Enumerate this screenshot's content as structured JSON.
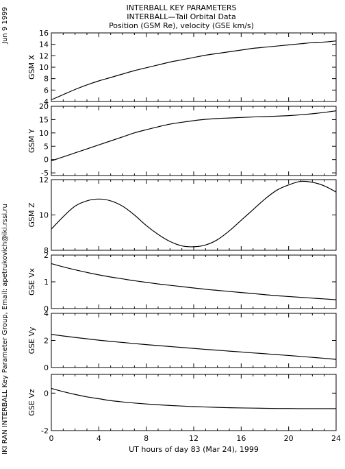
{
  "header": {
    "title_line1": "INTERBALL KEY PARAMETERS",
    "title_line2": "INTERBALL—Tail Orbital Data",
    "title_line3": "Position (GSM Re), velocity (GSE km/s)"
  },
  "left_date": "Jun  9 1999",
  "left_credit": "IKI RAN INTERBALL Key Parameter Group, Email: apetrukovich@iki.rssi.ru",
  "x_axis_label": "UT hours of day  83 (Mar 24), 1999",
  "colors": {
    "line": "#000000",
    "background": "#ffffff"
  },
  "chart_data": [
    {
      "type": "line",
      "ylabel": "GSM X",
      "ylim": [
        4,
        16
      ],
      "yticks": [
        4,
        6,
        8,
        10,
        12,
        14,
        16
      ],
      "xlim": [
        0,
        24
      ],
      "xticks": [
        0,
        4,
        8,
        12,
        16,
        20,
        24
      ],
      "x": [
        0,
        1,
        2,
        3,
        4,
        5,
        6,
        7,
        8,
        9,
        10,
        11,
        12,
        13,
        14,
        15,
        16,
        17,
        18,
        19,
        20,
        21,
        22,
        23,
        24
      ],
      "values": [
        4.3,
        5.2,
        6.1,
        6.9,
        7.6,
        8.2,
        8.8,
        9.4,
        9.9,
        10.4,
        10.9,
        11.3,
        11.7,
        12.1,
        12.4,
        12.7,
        13.0,
        13.3,
        13.5,
        13.7,
        13.9,
        14.1,
        14.3,
        14.4,
        14.6
      ]
    },
    {
      "type": "line",
      "ylabel": "GSM Y",
      "ylim": [
        -6,
        20
      ],
      "yticks": [
        -5,
        0,
        5,
        10,
        15,
        20
      ],
      "xlim": [
        0,
        24
      ],
      "xticks": [
        0,
        4,
        8,
        12,
        16,
        20,
        24
      ],
      "x": [
        0,
        1,
        2,
        3,
        4,
        5,
        6,
        7,
        8,
        9,
        10,
        11,
        12,
        13,
        14,
        15,
        16,
        17,
        18,
        19,
        20,
        21,
        22,
        23,
        24
      ],
      "values": [
        -0.5,
        1.0,
        2.5,
        4.0,
        5.5,
        7.0,
        8.5,
        10.0,
        11.2,
        12.3,
        13.3,
        14.0,
        14.6,
        15.1,
        15.4,
        15.6,
        15.8,
        16.0,
        16.1,
        16.3,
        16.5,
        16.8,
        17.2,
        17.7,
        18.3
      ]
    },
    {
      "type": "line",
      "ylabel": "GSM Z",
      "ylim": [
        8,
        12
      ],
      "yticks": [
        8,
        10,
        12
      ],
      "xlim": [
        0,
        24
      ],
      "xticks": [
        0,
        4,
        8,
        12,
        16,
        20,
        24
      ],
      "x": [
        0,
        1,
        2,
        3,
        4,
        5,
        6,
        7,
        8,
        9,
        10,
        11,
        12,
        13,
        14,
        15,
        16,
        17,
        18,
        19,
        20,
        21,
        22,
        23,
        24
      ],
      "values": [
        9.2,
        9.9,
        10.5,
        10.8,
        10.9,
        10.8,
        10.5,
        10.0,
        9.4,
        8.9,
        8.5,
        8.25,
        8.2,
        8.3,
        8.6,
        9.1,
        9.7,
        10.3,
        10.9,
        11.4,
        11.7,
        11.9,
        11.85,
        11.65,
        11.3
      ]
    },
    {
      "type": "line",
      "ylabel": "GSE Vx",
      "ylim": [
        0,
        2
      ],
      "yticks": [
        0,
        1,
        2
      ],
      "xlim": [
        0,
        24
      ],
      "xticks": [
        0,
        4,
        8,
        12,
        16,
        20,
        24
      ],
      "x": [
        0,
        1,
        2,
        3,
        4,
        5,
        6,
        7,
        8,
        9,
        10,
        11,
        12,
        13,
        14,
        15,
        16,
        17,
        18,
        19,
        20,
        21,
        22,
        23,
        24
      ],
      "values": [
        1.68,
        1.56,
        1.45,
        1.35,
        1.26,
        1.18,
        1.11,
        1.04,
        0.98,
        0.92,
        0.87,
        0.82,
        0.77,
        0.72,
        0.68,
        0.64,
        0.6,
        0.56,
        0.52,
        0.48,
        0.45,
        0.42,
        0.39,
        0.36,
        0.33
      ]
    },
    {
      "type": "line",
      "ylabel": "GSE Vy",
      "ylim": [
        0,
        4
      ],
      "yticks": [
        0,
        2,
        4
      ],
      "xlim": [
        0,
        24
      ],
      "xticks": [
        0,
        4,
        8,
        12,
        16,
        20,
        24
      ],
      "x": [
        0,
        1,
        2,
        3,
        4,
        5,
        6,
        7,
        8,
        9,
        10,
        11,
        12,
        13,
        14,
        15,
        16,
        17,
        18,
        19,
        20,
        21,
        22,
        23,
        24
      ],
      "values": [
        2.45,
        2.33,
        2.22,
        2.12,
        2.02,
        1.93,
        1.85,
        1.77,
        1.69,
        1.62,
        1.55,
        1.48,
        1.41,
        1.34,
        1.28,
        1.21,
        1.15,
        1.08,
        1.02,
        0.95,
        0.89,
        0.82,
        0.75,
        0.68,
        0.6
      ]
    },
    {
      "type": "line",
      "ylabel": "GSE Vz",
      "ylim": [
        -2,
        1
      ],
      "yticks": [
        -2,
        0
      ],
      "xlim": [
        0,
        24
      ],
      "xticks": [
        0,
        4,
        8,
        12,
        16,
        20,
        24
      ],
      "x": [
        0,
        1,
        2,
        3,
        4,
        5,
        6,
        7,
        8,
        9,
        10,
        11,
        12,
        13,
        14,
        15,
        16,
        17,
        18,
        19,
        20,
        21,
        22,
        23,
        24
      ],
      "values": [
        0.25,
        0.08,
        -0.07,
        -0.2,
        -0.3,
        -0.4,
        -0.47,
        -0.53,
        -0.58,
        -0.62,
        -0.66,
        -0.69,
        -0.72,
        -0.74,
        -0.76,
        -0.78,
        -0.79,
        -0.8,
        -0.81,
        -0.82,
        -0.82,
        -0.83,
        -0.83,
        -0.83,
        -0.83
      ]
    }
  ]
}
